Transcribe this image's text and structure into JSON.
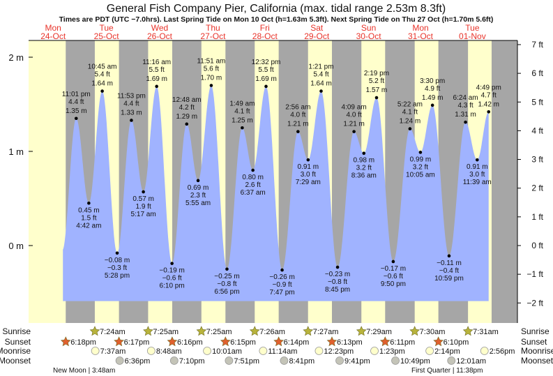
{
  "chart_data": {
    "type": "area",
    "title": "General Fish Company Pier, California (max. tidal range 2.53m 8.3ft)",
    "subtitle": "Times are PDT (UTC −7.0hrs). Last Spring Tide on Mon 10 Oct (h=1.63m 5.3ft). Next Spring Tide on Thu 27 Oct (h=1.70m 5.6ft)",
    "days": [
      {
        "dow": "Mon",
        "date": "24-Oct"
      },
      {
        "dow": "Tue",
        "date": "25-Oct"
      },
      {
        "dow": "Wed",
        "date": "26-Oct"
      },
      {
        "dow": "Thu",
        "date": "27-Oct"
      },
      {
        "dow": "Fri",
        "date": "28-Oct"
      },
      {
        "dow": "Sat",
        "date": "29-Oct"
      },
      {
        "dow": "Sun",
        "date": "30-Oct"
      },
      {
        "dow": "Mon",
        "date": "31-Oct"
      },
      {
        "dow": "Tue",
        "date": "01-Nov"
      }
    ],
    "yaxis_m": {
      "ticks": [
        "2 m",
        "1 m",
        "0 m"
      ],
      "values": [
        2,
        1,
        0
      ]
    },
    "yaxis_ft": {
      "ticks": [
        "7 ft",
        "6 ft",
        "5 ft",
        "4 ft",
        "3 ft",
        "2 ft",
        "1 ft",
        "0 ft",
        "−1 ft",
        "−2 ft"
      ],
      "values": [
        7,
        6,
        5,
        4,
        3,
        2,
        1,
        0,
        -1,
        -2
      ]
    },
    "ylim_m": [
      -0.6,
      2.1
    ],
    "tides": [
      {
        "day": 0,
        "time": "11:01 pm",
        "m": "1.35 m",
        "ft": "4.4 ft",
        "v": 1.35,
        "type": "high"
      },
      {
        "day": 1,
        "time": "4:42 am",
        "m": "0.45 m",
        "ft": "1.5 ft",
        "v": 0.45,
        "type": "low"
      },
      {
        "day": 1,
        "time": "10:45 am",
        "m": "1.64 m",
        "ft": "5.4 ft",
        "v": 1.64,
        "type": "high"
      },
      {
        "day": 1,
        "time": "5:28 pm",
        "m": "−0.08 m",
        "ft": "−0.3 ft",
        "v": -0.08,
        "type": "low"
      },
      {
        "day": 1,
        "time": "11:53 pm",
        "m": "1.33 m",
        "ft": "4.4 ft",
        "v": 1.33,
        "type": "high"
      },
      {
        "day": 2,
        "time": "5:17 am",
        "m": "0.57 m",
        "ft": "1.9 ft",
        "v": 0.57,
        "type": "low"
      },
      {
        "day": 2,
        "time": "11:16 am",
        "m": "1.69 m",
        "ft": "5.5 ft",
        "v": 1.69,
        "type": "high"
      },
      {
        "day": 2,
        "time": "6:10 pm",
        "m": "−0.19 m",
        "ft": "−0.6 ft",
        "v": -0.19,
        "type": "low"
      },
      {
        "day": 3,
        "time": "12:48 am",
        "m": "1.29 m",
        "ft": "4.2 ft",
        "v": 1.29,
        "type": "high"
      },
      {
        "day": 3,
        "time": "5:55 am",
        "m": "0.69 m",
        "ft": "2.3 ft",
        "v": 0.69,
        "type": "low"
      },
      {
        "day": 3,
        "time": "11:51 am",
        "m": "1.70 m",
        "ft": "5.6 ft",
        "v": 1.7,
        "type": "high"
      },
      {
        "day": 3,
        "time": "6:56 pm",
        "m": "−0.25 m",
        "ft": "−0.8 ft",
        "v": -0.25,
        "type": "low"
      },
      {
        "day": 4,
        "time": "1:49 am",
        "m": "1.25 m",
        "ft": "4.1 ft",
        "v": 1.25,
        "type": "high"
      },
      {
        "day": 4,
        "time": "6:37 am",
        "m": "0.80 m",
        "ft": "2.6 ft",
        "v": 0.8,
        "type": "low"
      },
      {
        "day": 4,
        "time": "12:32 pm",
        "m": "1.69 m",
        "ft": "5.5 ft",
        "v": 1.69,
        "type": "high"
      },
      {
        "day": 4,
        "time": "7:47 pm",
        "m": "−0.26 m",
        "ft": "−0.9 ft",
        "v": -0.26,
        "type": "low"
      },
      {
        "day": 5,
        "time": "2:56 am",
        "m": "1.21 m",
        "ft": "4.0 ft",
        "v": 1.21,
        "type": "high"
      },
      {
        "day": 5,
        "time": "7:29 am",
        "m": "0.91 m",
        "ft": "3.0 ft",
        "v": 0.91,
        "type": "low"
      },
      {
        "day": 5,
        "time": "1:21 pm",
        "m": "1.64 m",
        "ft": "5.4 ft",
        "v": 1.64,
        "type": "high"
      },
      {
        "day": 5,
        "time": "8:45 pm",
        "m": "−0.23 m",
        "ft": "−0.8 ft",
        "v": -0.23,
        "type": "low"
      },
      {
        "day": 6,
        "time": "4:09 am",
        "m": "1.21 m",
        "ft": "4.0 ft",
        "v": 1.21,
        "type": "high"
      },
      {
        "day": 6,
        "time": "8:36 am",
        "m": "0.98 m",
        "ft": "3.2 ft",
        "v": 0.98,
        "type": "low"
      },
      {
        "day": 6,
        "time": "2:19 pm",
        "m": "1.57 m",
        "ft": "5.2 ft",
        "v": 1.57,
        "type": "high"
      },
      {
        "day": 6,
        "time": "9:50 pm",
        "m": "−0.17 m",
        "ft": "−0.6 ft",
        "v": -0.17,
        "type": "low"
      },
      {
        "day": 7,
        "time": "5:22 am",
        "m": "1.24 m",
        "ft": "4.1 ft",
        "v": 1.24,
        "type": "high"
      },
      {
        "day": 7,
        "time": "10:05 am",
        "m": "0.99 m",
        "ft": "3.2 ft",
        "v": 0.99,
        "type": "low"
      },
      {
        "day": 7,
        "time": "3:30 pm",
        "m": "1.49 m",
        "ft": "4.9 ft",
        "v": 1.49,
        "type": "high"
      },
      {
        "day": 7,
        "time": "10:59 pm",
        "m": "−0.11 m",
        "ft": "−0.4 ft",
        "v": -0.11,
        "type": "low"
      },
      {
        "day": 8,
        "time": "6:24 am",
        "m": "1.31 m",
        "ft": "4.3 ft",
        "v": 1.31,
        "type": "high"
      },
      {
        "day": 8,
        "time": "11:39 am",
        "m": "0.91 m",
        "ft": "3.0 ft",
        "v": 0.91,
        "type": "low"
      },
      {
        "day": 8,
        "time": "4:49 pm",
        "m": "1.42 m",
        "ft": "4.7 ft",
        "v": 1.42,
        "type": "high"
      }
    ],
    "row_labels": {
      "sunrise": "Sunrise",
      "sunset": "Sunset",
      "moonrise": "Moonrise",
      "moonset": "Moonset"
    },
    "sunrise": [
      {
        "day": 1,
        "time": "7:24am"
      },
      {
        "day": 2,
        "time": "7:25am"
      },
      {
        "day": 3,
        "time": "7:25am"
      },
      {
        "day": 4,
        "time": "7:26am"
      },
      {
        "day": 5,
        "time": "7:27am"
      },
      {
        "day": 6,
        "time": "7:29am"
      },
      {
        "day": 7,
        "time": "7:30am"
      },
      {
        "day": 8,
        "time": "7:31am"
      }
    ],
    "sunset": [
      {
        "day": 0,
        "time": "6:18pm"
      },
      {
        "day": 1,
        "time": "6:17pm"
      },
      {
        "day": 2,
        "time": "6:16pm"
      },
      {
        "day": 3,
        "time": "6:15pm"
      },
      {
        "day": 4,
        "time": "6:14pm"
      },
      {
        "day": 5,
        "time": "6:13pm"
      },
      {
        "day": 6,
        "time": "6:11pm"
      },
      {
        "day": 7,
        "time": "6:10pm"
      }
    ],
    "moonrise": [
      {
        "day": 1,
        "time": "7:37am"
      },
      {
        "day": 2,
        "time": "8:48am"
      },
      {
        "day": 3,
        "time": "10:01am"
      },
      {
        "day": 4,
        "time": "11:14am"
      },
      {
        "day": 5,
        "time": "12:23pm"
      },
      {
        "day": 6,
        "time": "1:23pm"
      },
      {
        "day": 7,
        "time": "2:14pm"
      },
      {
        "day": 8,
        "time": "2:56pm"
      }
    ],
    "moonset": [
      {
        "day": 1,
        "time": "6:36pm"
      },
      {
        "day": 2,
        "time": "7:10pm"
      },
      {
        "day": 3,
        "time": "7:51pm"
      },
      {
        "day": 4,
        "time": "8:41pm"
      },
      {
        "day": 5,
        "time": "9:41pm"
      },
      {
        "day": 6,
        "time": "10:49pm"
      },
      {
        "day": 8,
        "time": "12:01am"
      }
    ],
    "moon_phases": [
      {
        "text": "New Moon | 3:48am",
        "day": 1
      },
      {
        "text": "First Quarter | 11:38pm",
        "day": 7
      }
    ],
    "colors": {
      "day": "#ffffcc",
      "night": "#a6a6a6",
      "water": "#a0b3ff",
      "daylabel": "#e8332a",
      "sunrise": "#b8b33c",
      "sunset": "#e0602e",
      "moonrise": "#ffffcc",
      "moonset": "#c4c4b8"
    }
  }
}
